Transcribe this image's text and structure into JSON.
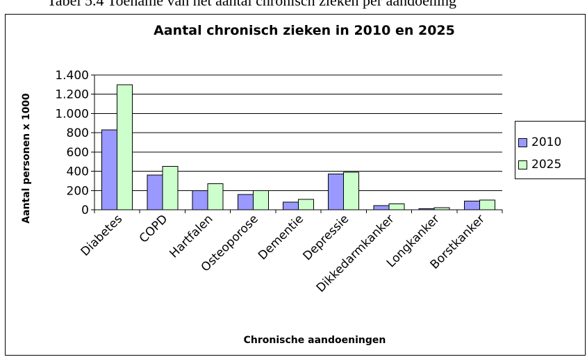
{
  "caption": "Tabel 5.4 Toename van het aantal chronisch zieken per aandoening",
  "chart_data": {
    "type": "bar",
    "title": "Aantal chronisch zieken in 2010 en 2025",
    "xlabel": "Chronische aandoeningen",
    "ylabel": "Aantal personen x 1000",
    "categories": [
      "Diabetes",
      "COPD",
      "Hartfalen",
      "Osteoporose",
      "Dementie",
      "Depressie",
      "Dikkedarmkanker",
      "Longkanker",
      "Borstkanker"
    ],
    "series": [
      {
        "name": "2010",
        "color": "#9999ff",
        "values": [
          830,
          360,
          200,
          160,
          80,
          370,
          45,
          10,
          90
        ]
      },
      {
        "name": "2025",
        "color": "#ccffcc",
        "values": [
          1300,
          450,
          270,
          200,
          110,
          390,
          60,
          20,
          100
        ]
      }
    ],
    "ylim": [
      0,
      1400
    ],
    "yticks": [
      0,
      200,
      400,
      600,
      800,
      1000,
      1200,
      1400
    ],
    "ytick_labels": [
      "0",
      "200",
      "400",
      "600",
      "800",
      "1.000",
      "1.200",
      "1.400"
    ],
    "grid": true,
    "legend": "right"
  }
}
